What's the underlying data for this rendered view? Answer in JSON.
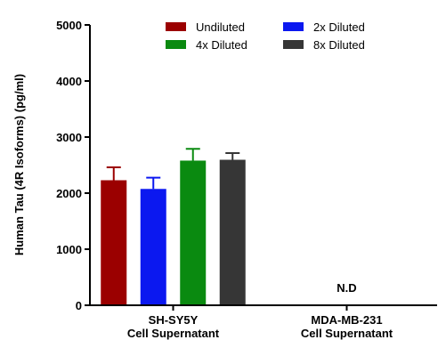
{
  "chart_data": {
    "type": "bar",
    "ylabel": "Human Tau (4R Isoforms) (pg/ml)",
    "ylim": [
      0,
      5000
    ],
    "yticks": [
      0,
      1000,
      2000,
      3000,
      4000,
      5000
    ],
    "categories": [
      [
        "SH-SY5Y",
        "Cell Supernatant"
      ],
      [
        "MDA-MB-231",
        "Cell Supernatant"
      ]
    ],
    "series": [
      {
        "name": "Undiluted",
        "color": "#9b0000",
        "values": [
          2230,
          null
        ],
        "errors": [
          230,
          null
        ]
      },
      {
        "name": "2x Diluted",
        "color": "#0b18f0",
        "values": [
          2075,
          null
        ],
        "errors": [
          200,
          null
        ]
      },
      {
        "name": "4x Diluted",
        "color": "#0a8a10",
        "values": [
          2580,
          null
        ],
        "errors": [
          210,
          null
        ]
      },
      {
        "name": "8x Diluted",
        "color": "#363636",
        "values": [
          2595,
          null
        ],
        "errors": [
          120,
          null
        ]
      }
    ],
    "legend_position": "top",
    "grid": false,
    "annotations": [
      {
        "text": "N.D",
        "category": 1,
        "value": 300
      }
    ]
  }
}
